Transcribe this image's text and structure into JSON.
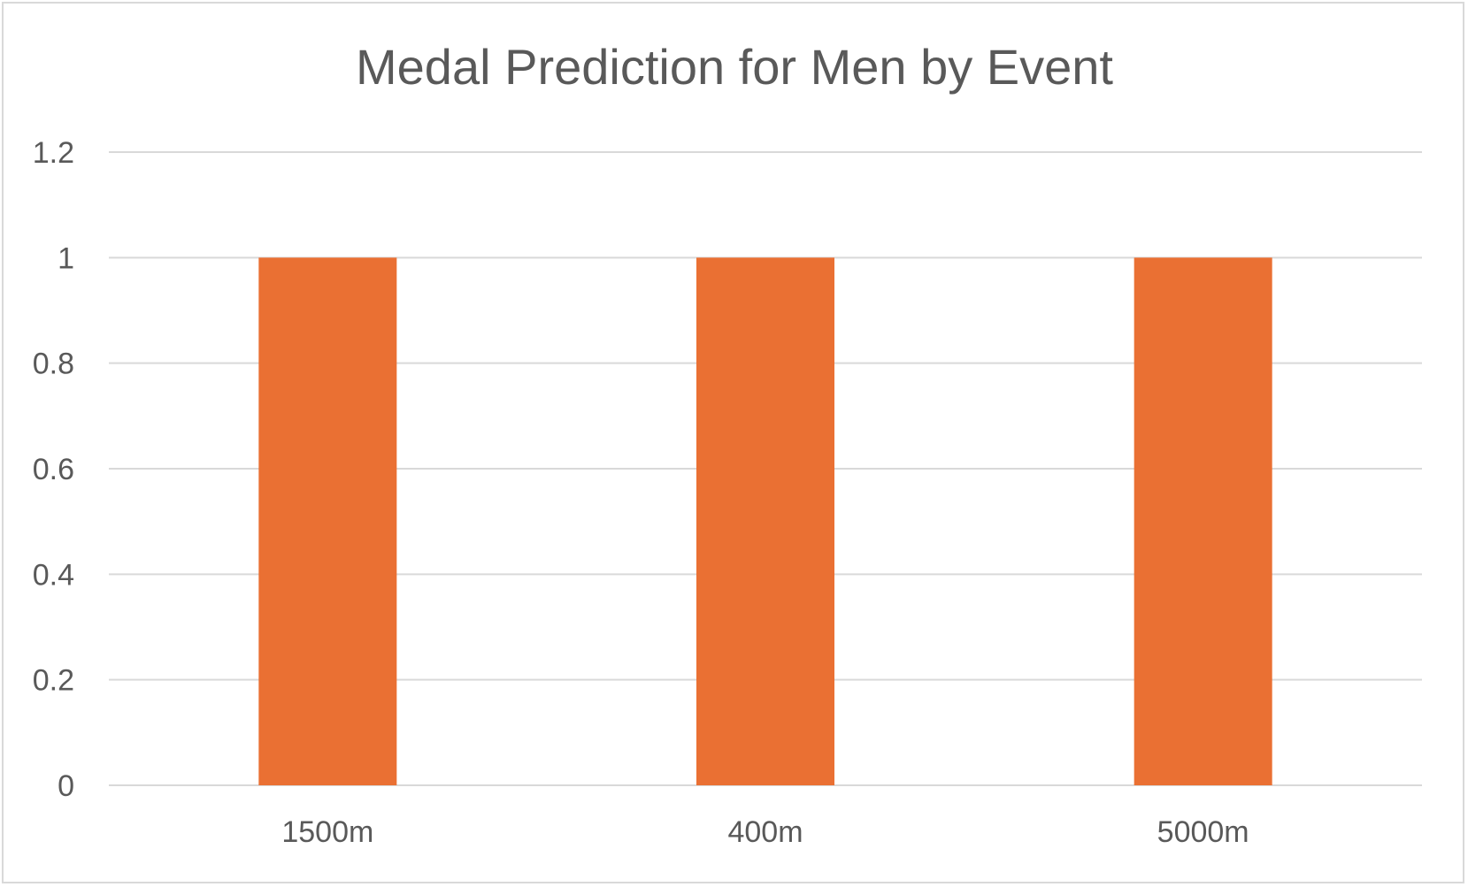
{
  "chart_data": {
    "type": "bar",
    "title": "Medal Prediction for Men by Event",
    "categories": [
      "1500m",
      "400m",
      "5000m"
    ],
    "values": [
      1,
      1,
      1
    ],
    "ylim": [
      0,
      1.2
    ],
    "yticks": [
      "0",
      "0.2",
      "0.4",
      "0.6",
      "0.8",
      "1",
      "1.2"
    ],
    "grid": true,
    "legend": "none",
    "bar_color": "#ea7033",
    "xlabel": "",
    "ylabel": ""
  }
}
